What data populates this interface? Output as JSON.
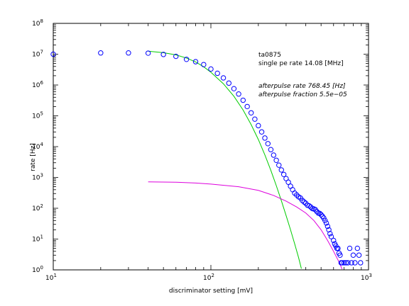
{
  "chart_data": {
    "type": "scatter",
    "title": "",
    "xlabel": "discriminator setting [mV]",
    "ylabel": "rate [Hz]",
    "xscale": "log",
    "yscale": "log",
    "xlim": [
      10,
      1000
    ],
    "ylim": [
      1,
      100000000
    ],
    "grid": false,
    "x_ticks": [
      {
        "value": 10,
        "base": "10",
        "exp": "1"
      },
      {
        "value": 100,
        "base": "10",
        "exp": "2"
      },
      {
        "value": 1000,
        "base": "10",
        "exp": "3"
      }
    ],
    "y_ticks": [
      {
        "value": 1,
        "base": "10",
        "exp": "0"
      },
      {
        "value": 10,
        "base": "10",
        "exp": "1"
      },
      {
        "value": 100,
        "base": "10",
        "exp": "2"
      },
      {
        "value": 1000,
        "base": "10",
        "exp": "3"
      },
      {
        "value": 10000,
        "base": "10",
        "exp": "4"
      },
      {
        "value": 100000,
        "base": "10",
        "exp": "5"
      },
      {
        "value": 1000000,
        "base": "10",
        "exp": "6"
      },
      {
        "value": 10000000,
        "base": "10",
        "exp": "7"
      },
      {
        "value": 100000000,
        "base": "10",
        "exp": "8"
      }
    ],
    "annotations": {
      "line1": "ta0875",
      "line2": "single pe rate 14.08 [MHz]",
      "line3": "afterpulse rate 768.45 [Hz]",
      "line4": "afterpulse fraction 5.5e−05"
    },
    "series": [
      {
        "style": "markers",
        "marker": "circle",
        "color": "#0000ff",
        "points": [
          [
            10,
            10000000
          ],
          [
            20,
            11000000
          ],
          [
            30,
            11000000
          ],
          [
            40,
            10800000
          ],
          [
            50,
            9800000
          ],
          [
            60,
            8500000
          ],
          [
            70,
            6800000
          ],
          [
            80,
            5700000
          ],
          [
            90,
            4600000
          ],
          [
            100,
            3300000
          ],
          [
            110,
            2400000
          ],
          [
            120,
            1700000
          ],
          [
            130,
            1150000
          ],
          [
            140,
            760000
          ],
          [
            150,
            510000
          ],
          [
            160,
            320000
          ],
          [
            170,
            200000
          ],
          [
            180,
            125000
          ],
          [
            190,
            78000
          ],
          [
            200,
            48000
          ],
          [
            210,
            30000
          ],
          [
            220,
            19000
          ],
          [
            230,
            12500
          ],
          [
            240,
            8000
          ],
          [
            250,
            5300
          ],
          [
            260,
            3600
          ],
          [
            270,
            2500
          ],
          [
            280,
            1750
          ],
          [
            290,
            1250
          ],
          [
            300,
            920
          ],
          [
            310,
            700
          ],
          [
            320,
            520
          ],
          [
            330,
            400
          ],
          [
            340,
            310
          ],
          [
            350,
            270
          ],
          [
            360,
            235
          ],
          [
            370,
            215
          ],
          [
            380,
            180
          ],
          [
            390,
            160
          ],
          [
            400,
            145
          ],
          [
            410,
            125
          ],
          [
            420,
            120
          ],
          [
            430,
            110
          ],
          [
            440,
            98
          ],
          [
            450,
            95
          ],
          [
            460,
            90
          ],
          [
            470,
            78
          ],
          [
            480,
            70
          ],
          [
            490,
            68
          ],
          [
            500,
            62
          ],
          [
            510,
            55
          ],
          [
            520,
            48
          ],
          [
            530,
            40
          ],
          [
            540,
            33
          ],
          [
            550,
            26
          ],
          [
            560,
            20
          ],
          [
            570,
            15
          ],
          [
            580,
            12
          ],
          [
            600,
            9
          ],
          [
            610,
            7
          ],
          [
            620,
            6
          ],
          [
            630,
            5
          ],
          [
            640,
            5
          ],
          [
            650,
            3.5
          ],
          [
            660,
            3
          ],
          [
            670,
            1.7
          ],
          [
            680,
            1.7
          ],
          [
            700,
            1.7
          ],
          [
            720,
            1.7
          ],
          [
            740,
            1.7
          ],
          [
            760,
            5
          ],
          [
            780,
            1.7
          ],
          [
            800,
            3
          ],
          [
            820,
            1.7
          ],
          [
            850,
            5
          ],
          [
            870,
            3
          ],
          [
            890,
            1.7
          ]
        ]
      },
      {
        "style": "line",
        "color": "#00cc00",
        "points": [
          [
            40,
            12500000
          ],
          [
            50,
            11200000
          ],
          [
            60,
            9500000
          ],
          [
            70,
            7500000
          ],
          [
            80,
            5600000
          ],
          [
            90,
            3900000
          ],
          [
            100,
            2600000
          ],
          [
            120,
            1100000
          ],
          [
            140,
            430000
          ],
          [
            160,
            155000
          ],
          [
            180,
            52000
          ],
          [
            200,
            17000
          ],
          [
            220,
            5400
          ],
          [
            240,
            1700
          ],
          [
            260,
            540
          ],
          [
            280,
            175
          ],
          [
            300,
            58
          ],
          [
            320,
            20
          ],
          [
            340,
            7
          ],
          [
            360,
            2.5
          ],
          [
            375,
            1.1
          ]
        ]
      },
      {
        "style": "line",
        "color": "#dd00dd",
        "points": [
          [
            40,
            720
          ],
          [
            60,
            700
          ],
          [
            80,
            660
          ],
          [
            100,
            610
          ],
          [
            150,
            500
          ],
          [
            200,
            380
          ],
          [
            250,
            260
          ],
          [
            300,
            170
          ],
          [
            350,
            110
          ],
          [
            400,
            70
          ],
          [
            450,
            40
          ],
          [
            500,
            20
          ],
          [
            550,
            9
          ],
          [
            600,
            4
          ],
          [
            650,
            1.8
          ],
          [
            680,
            1.05
          ]
        ]
      }
    ]
  }
}
